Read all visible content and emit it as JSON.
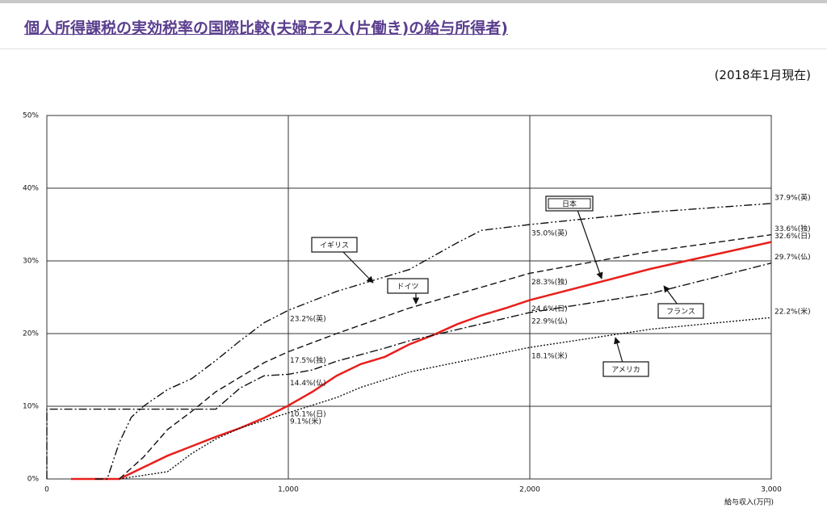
{
  "chart_data": {
    "type": "line",
    "title": "個人所得課税の実効税率の国際比較(夫婦子2人(片働き)の給与所得者)",
    "subtitle": "(2018年1月現在)",
    "x_label": "給与収入(万円)",
    "xlim": [
      0,
      3000
    ],
    "ylim": [
      0,
      50
    ],
    "xticks": [
      0,
      {
        "value": 1000,
        "label": "1,000"
      },
      {
        "value": 2000,
        "label": "2,000"
      },
      {
        "value": 3000,
        "label": "3,000"
      }
    ],
    "yticks": [
      {
        "value": 0,
        "label": "0%"
      },
      {
        "value": 10,
        "label": "10%"
      },
      {
        "value": 20,
        "label": "20%"
      },
      {
        "value": 30,
        "label": "30%"
      },
      {
        "value": 40,
        "label": "40%"
      },
      {
        "value": 50,
        "label": "50%"
      }
    ],
    "grid": true,
    "series": [
      {
        "name": "日本",
        "color": "#e8201c",
        "dash": "solid",
        "x": [
          100,
          300,
          500,
          600,
          700,
          800,
          900,
          1000,
          1100,
          1200,
          1300,
          1400,
          1500,
          1600,
          1700,
          1800,
          1900,
          2000,
          2500,
          3000
        ],
        "values": [
          0,
          0,
          3.2,
          4.5,
          5.8,
          7,
          8.4,
          10.1,
          12,
          14.2,
          15.8,
          16.8,
          18.5,
          19.8,
          21.3,
          22.5,
          23.5,
          24.6,
          28.9,
          32.6
        ],
        "value_labels": [
          null,
          null,
          null,
          null,
          null,
          null,
          null,
          "10.1%(日)",
          null,
          null,
          null,
          null,
          null,
          null,
          null,
          null,
          null,
          "24.6%(日)",
          null,
          "32.6%(日)"
        ]
      },
      {
        "name": "イギリス",
        "color": "#111111",
        "dash": "dashdotdot",
        "x": [
          200,
          250,
          300,
          350,
          400,
          500,
          600,
          700,
          800,
          900,
          1000,
          1200,
          1500,
          1700,
          1800,
          2000,
          2500,
          3000
        ],
        "values": [
          0,
          0,
          5,
          8.5,
          10,
          12.3,
          13.8,
          16.3,
          19,
          21.5,
          23.2,
          25.8,
          28.8,
          32.5,
          34.2,
          35.0,
          36.7,
          37.9
        ],
        "value_labels": [
          null,
          null,
          null,
          null,
          null,
          null,
          null,
          null,
          null,
          null,
          "23.2%(英)",
          null,
          null,
          null,
          null,
          "35.0%(英)",
          null,
          "37.9%(英)"
        ]
      },
      {
        "name": "ドイツ",
        "color": "#111111",
        "dash": "dash",
        "x": [
          300,
          400,
          500,
          600,
          700,
          800,
          900,
          1000,
          1200,
          1500,
          2000,
          2500,
          3000
        ],
        "values": [
          0,
          3,
          6.8,
          9.3,
          12,
          14,
          16,
          17.5,
          20,
          23.5,
          28.3,
          31.3,
          33.6
        ],
        "value_labels": [
          null,
          null,
          null,
          null,
          null,
          null,
          null,
          "17.5%(独)",
          null,
          null,
          "28.3%(独)",
          null,
          "33.6%(独)"
        ]
      },
      {
        "name": "フランス",
        "color": "#111111",
        "dash": "dashdot",
        "x": [
          0,
          0,
          700,
          800,
          900,
          1000,
          1100,
          1200,
          1400,
          1500,
          2000,
          2500,
          3000
        ],
        "values": [
          0,
          9.6,
          9.6,
          12.5,
          14.2,
          14.4,
          15,
          16.2,
          18,
          19,
          22.9,
          25.5,
          29.7
        ],
        "value_labels": [
          null,
          null,
          null,
          null,
          null,
          "14.4%(仏)",
          null,
          null,
          null,
          null,
          "22.9%(仏)",
          null,
          "29.7%(仏)"
        ]
      },
      {
        "name": "アメリカ",
        "color": "#111111",
        "dash": "dot",
        "x": [
          300,
          500,
          600,
          700,
          800,
          1000,
          1200,
          1300,
          1500,
          2000,
          2500,
          3000
        ],
        "values": [
          0,
          1,
          3.5,
          5.5,
          7,
          9.1,
          11.2,
          12.6,
          14.7,
          18.1,
          20.6,
          22.2
        ],
        "value_labels": [
          null,
          null,
          null,
          null,
          null,
          "9.1%(米)",
          null,
          null,
          null,
          "18.1%(米)",
          null,
          "22.2%(米)"
        ]
      }
    ]
  }
}
